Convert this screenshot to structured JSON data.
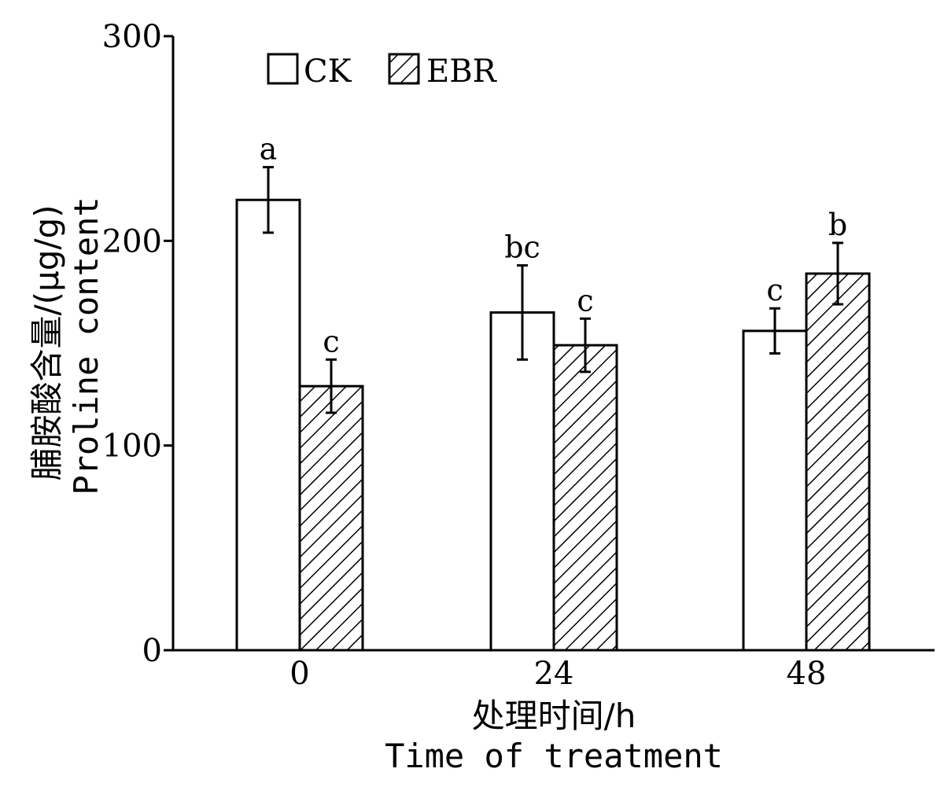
{
  "chart_data": {
    "type": "bar",
    "categories": [
      "0",
      "24",
      "48"
    ],
    "series": [
      {
        "name": "CK",
        "pattern": "none",
        "values": [
          220,
          165,
          156
        ],
        "errors": [
          16,
          23,
          11
        ],
        "sig_letters": [
          "a",
          "bc",
          "c"
        ]
      },
      {
        "name": "EBR",
        "pattern": "hatch",
        "values": [
          129,
          149,
          184
        ],
        "errors": [
          13,
          13,
          15
        ],
        "sig_letters": [
          "c",
          "c",
          "b"
        ]
      }
    ],
    "xlabel_cn": "处理时间/h",
    "xlabel_en": "Time of treatment",
    "ylabel_cn": "脯胺酸含量/(μg/g)",
    "ylabel_en": "Proline content",
    "ylim": [
      0,
      300
    ],
    "yticks": [
      0,
      100,
      200,
      300
    ],
    "legend_position": "top-left",
    "grid": false
  }
}
